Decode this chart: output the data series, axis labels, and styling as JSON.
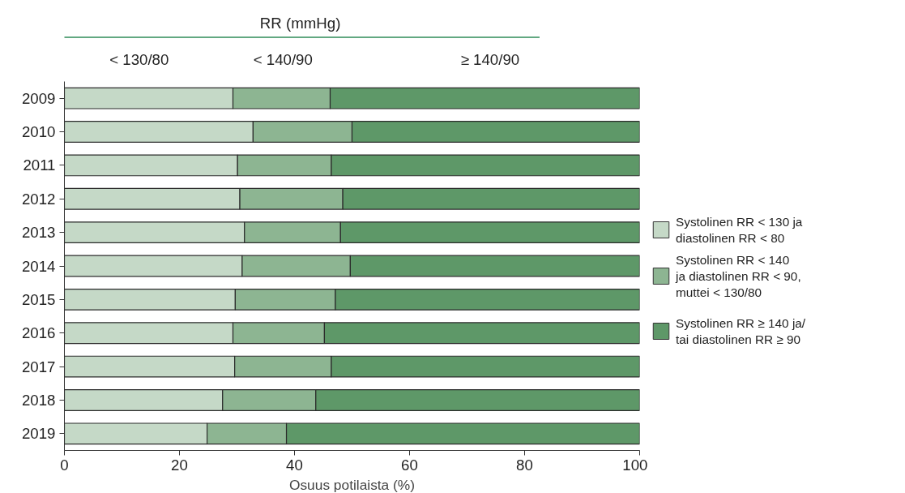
{
  "chart_data": {
    "type": "bar",
    "orientation": "horizontal",
    "stacked": true,
    "categories": [
      "2009",
      "2010",
      "2011",
      "2012",
      "2013",
      "2014",
      "2015",
      "2016",
      "2017",
      "2018",
      "2019"
    ],
    "series": [
      {
        "name": "Systolinen RR < 130 ja\ndiastolinen RR < 80",
        "color": "#c5d9c7",
        "values": [
          29.3,
          32.8,
          30.1,
          30.5,
          31.3,
          30.9,
          29.7,
          29.3,
          29.6,
          27.5,
          24.8
        ]
      },
      {
        "name": "Systolinen RR < 140\nja diastolinen RR < 90,\nmuttei < 130/80",
        "color": "#8db592",
        "values": [
          16.9,
          17.2,
          16.3,
          17.9,
          16.7,
          18.8,
          17.4,
          15.9,
          16.8,
          16.2,
          13.8
        ]
      },
      {
        "name": "Systolinen RR ≥ 140 ja/\ntai diastolinen RR ≥ 90",
        "color": "#5e9868",
        "values": [
          53.8,
          50.0,
          53.6,
          51.6,
          52.0,
          50.3,
          52.9,
          54.8,
          53.6,
          56.3,
          61.4
        ]
      }
    ],
    "xlim": [
      0,
      100
    ],
    "xticks": [
      0,
      20,
      40,
      60,
      80,
      100
    ],
    "xlabel": "Osuus potilaista (%)",
    "annotations": [
      "RR (mmHg)",
      "< 130/80",
      "< 140/90",
      "≥ 140/90"
    ],
    "legend": "right",
    "grid": false
  }
}
